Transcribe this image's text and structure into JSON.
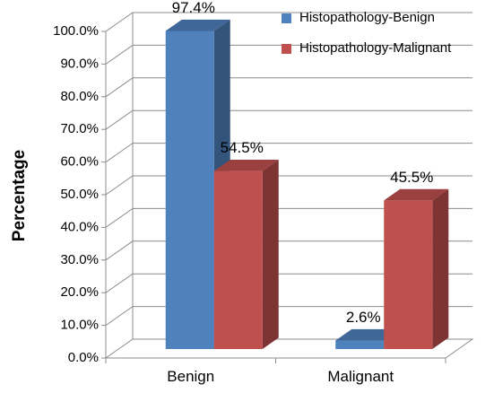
{
  "chart_data": {
    "type": "bar",
    "categories": [
      "Benign",
      "Malignant"
    ],
    "series": [
      {
        "name": "Histopathology-Benign",
        "values": [
          97.4,
          2.6
        ],
        "labels": [
          "97.4%",
          "2.6%"
        ],
        "color": "#4f81bd"
      },
      {
        "name": "Histopathology-Malignant",
        "values": [
          54.5,
          45.5
        ],
        "labels": [
          "54.5%",
          "45.5%"
        ],
        "color": "#c0504d"
      }
    ],
    "ylabel": "Percentage",
    "xlabel": "",
    "ylim": [
      0,
      100
    ],
    "yticks": [
      "0.0%",
      "10.0%",
      "20.0%",
      "30.0%",
      "40.0%",
      "50.0%",
      "60.0%",
      "70.0%",
      "80.0%",
      "90.0%",
      "100.0%"
    ],
    "grid": true,
    "legend_position": "top-right",
    "style": "3d-clustered-column"
  }
}
